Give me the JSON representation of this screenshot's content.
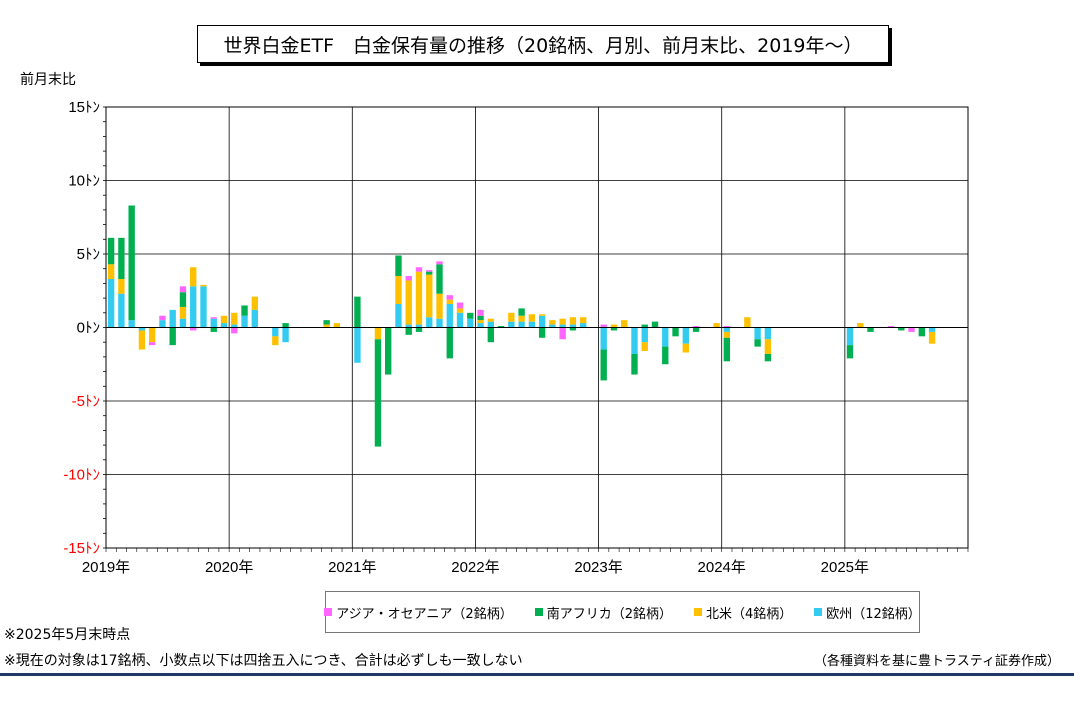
{
  "title": "世界白金ETF　白金保有量の推移（20銘柄、月別、前月末比、2019年～）",
  "notes": {
    "as_of": "※2025年5月末時点",
    "rounding": "※現在の対象は17銘柄、小数点以下は四捨五入につき、合計は必ずしも一致しない",
    "source": "（各種資料を基に豊トラスティ証券作成）"
  },
  "colors": {
    "asia": "#ff66ff",
    "south_africa": "#00b050",
    "north_america": "#ffc000",
    "europe": "#33ccf0",
    "negative_tick": "#ff0000",
    "footer_line": "#1f3864"
  },
  "chart_data": {
    "type": "bar",
    "stacked": true,
    "ylabel": "前月末比",
    "ylim": [
      -15,
      15
    ],
    "yticks": [
      {
        "value": 15,
        "label": "15ﾄﾝ"
      },
      {
        "value": 10,
        "label": "10ﾄﾝ"
      },
      {
        "value": 5,
        "label": "5ﾄﾝ"
      },
      {
        "value": 0,
        "label": "0ﾄﾝ"
      },
      {
        "value": -5,
        "label": "-5ﾄﾝ"
      },
      {
        "value": -10,
        "label": "-10ﾄﾝ"
      },
      {
        "value": -15,
        "label": "-15ﾄﾝ"
      }
    ],
    "year_labels": [
      "2019年",
      "2020年",
      "2021年",
      "2022年",
      "2023年",
      "2024年",
      "2025年"
    ],
    "months_total": 84,
    "legend_position": "bottom",
    "grid": true,
    "series": [
      {
        "name": "アジア・オセアニア（2銘柄）",
        "key": "asia",
        "values": [
          0,
          0,
          0,
          0,
          -0.2,
          0.3,
          0,
          0.4,
          -0.2,
          0,
          0.1,
          0,
          -0.4,
          0,
          0,
          0,
          0,
          0,
          0,
          0,
          0,
          0,
          0,
          0,
          0,
          0,
          0,
          0,
          0,
          0.3,
          0.3,
          0.1,
          0.2,
          0.3,
          0.4,
          0,
          0.4,
          0,
          0,
          0,
          0,
          0,
          0,
          0,
          -0.8,
          0,
          0,
          0,
          0.2,
          0,
          0,
          0,
          0,
          0,
          0,
          0,
          0,
          0.1,
          0,
          0,
          0.1,
          0,
          0,
          0,
          0,
          0,
          0,
          0,
          0,
          0,
          0,
          0,
          0,
          0,
          0,
          0,
          0.1,
          0,
          -0.3,
          0,
          0,
          0,
          0,
          0
        ]
      },
      {
        "name": "南アフリカ（2銘柄）",
        "key": "south_africa",
        "values": [
          1.8,
          2.8,
          7.8,
          0,
          0,
          0,
          -1.2,
          1.0,
          0,
          0,
          -0.3,
          0,
          0,
          0.7,
          0,
          0,
          0,
          0.3,
          0,
          0,
          0,
          0.3,
          0,
          0,
          2.1,
          0,
          -7.3,
          -3.2,
          1.4,
          -0.5,
          -0.3,
          0.2,
          2.0,
          -2.1,
          0,
          0.4,
          0.3,
          -1.0,
          0.1,
          0,
          0.5,
          0,
          -0.7,
          0,
          0,
          -0.2,
          0,
          0,
          -2.1,
          -0.2,
          0,
          -1.4,
          0.2,
          0.4,
          -1.2,
          -0.6,
          0,
          -0.3,
          0,
          0,
          -1.6,
          0,
          0,
          -0.5,
          -0.5,
          0,
          0,
          0,
          0,
          0,
          0,
          0,
          -0.9,
          0,
          -0.3,
          0,
          0,
          -0.2,
          0,
          -0.6,
          0,
          0,
          0,
          0
        ]
      },
      {
        "name": "北米（4銘柄）",
        "key": "north_america",
        "values": [
          1.0,
          1.0,
          0,
          -1.3,
          -1.0,
          0,
          0,
          0.8,
          1.3,
          0.1,
          0,
          0.5,
          0.8,
          0,
          0.9,
          0,
          -0.6,
          0,
          0,
          0,
          0,
          0.2,
          0.3,
          0,
          0,
          0,
          -0.8,
          0,
          1.9,
          3.0,
          3.6,
          2.9,
          1.7,
          0.3,
          0.3,
          0,
          0.2,
          0.2,
          0,
          0.6,
          0.4,
          0.5,
          0.1,
          0.3,
          0.4,
          0.5,
          0.4,
          0,
          0,
          0.2,
          0.5,
          0,
          -0.6,
          0,
          0,
          0,
          -0.6,
          0,
          0,
          0.3,
          -0.4,
          0,
          0.7,
          0,
          -1.0,
          0,
          0,
          0,
          0,
          0,
          0,
          0,
          0,
          0.3,
          0,
          0,
          0,
          0,
          0,
          0,
          -0.8,
          0,
          0,
          0
        ]
      },
      {
        "name": "欧州（12銘柄）",
        "key": "europe",
        "values": [
          3.3,
          2.3,
          0.5,
          -0.2,
          0,
          0.5,
          1.2,
          0.6,
          2.8,
          2.8,
          0.6,
          0.3,
          0.2,
          0.8,
          1.2,
          0,
          -0.6,
          -1.0,
          0,
          0,
          0,
          0,
          0,
          0,
          -2.4,
          0,
          0,
          0,
          1.6,
          0.2,
          0.2,
          0.7,
          0.6,
          1.6,
          1.0,
          0.6,
          0.3,
          0.4,
          0,
          0.4,
          0.4,
          0.4,
          0.8,
          0.2,
          0.2,
          0.2,
          0.3,
          0,
          -1.5,
          0,
          0,
          -1.8,
          -1.0,
          0,
          -1.3,
          0,
          -1.1,
          0,
          0,
          0,
          -0.3,
          0,
          0,
          -0.8,
          -0.8,
          0,
          0,
          0,
          0,
          0,
          0,
          0,
          -1.2,
          0,
          0,
          0,
          0,
          0,
          0,
          0,
          -0.3,
          0,
          0,
          0
        ]
      }
    ]
  }
}
